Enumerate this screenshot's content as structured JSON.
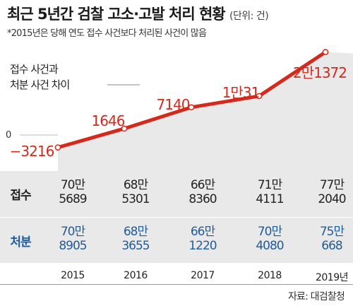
{
  "title": "최근 5년간 검찰 고소·고발 처리 현황",
  "unit": "(단위: 건)",
  "note": "*2015년은 당해 연도 접수 사건보다 처리된 사건이 많음",
  "source": "자료: 대검찰청",
  "colors": {
    "line": "#d42a1e",
    "value_label": "#d42a1e",
    "table_bg": "#e9e9e9",
    "processed": "#1f5c99"
  },
  "chart_data": {
    "type": "area",
    "title": "최근 5년간 검찰 고소·고발 처리 현황",
    "annotation": "접수 사건과\n처분 사건 차이",
    "zero_label": "0",
    "categories": [
      "2015",
      "2016",
      "2017",
      "2018",
      "2019년"
    ],
    "series": [
      {
        "name": "접수 사건과 처분 사건 차이",
        "values": [
          -3216,
          1646,
          7140,
          10031,
          21372
        ],
        "labels": [
          "−3216",
          "1646",
          "7140",
          "1만31",
          "2만1372"
        ]
      }
    ]
  },
  "table": {
    "rows": [
      {
        "label": "접수",
        "values": [
          [
            "70만",
            "5689"
          ],
          [
            "68만",
            "5301"
          ],
          [
            "66만",
            "8360"
          ],
          [
            "71만",
            "4111"
          ],
          [
            "77만",
            "2040"
          ]
        ]
      },
      {
        "label": "처분",
        "values": [
          [
            "70만",
            "8905"
          ],
          [
            "68만",
            "3655"
          ],
          [
            "66만",
            "1220"
          ],
          [
            "70만",
            "4080"
          ],
          [
            "75만",
            "668"
          ]
        ]
      }
    ]
  }
}
